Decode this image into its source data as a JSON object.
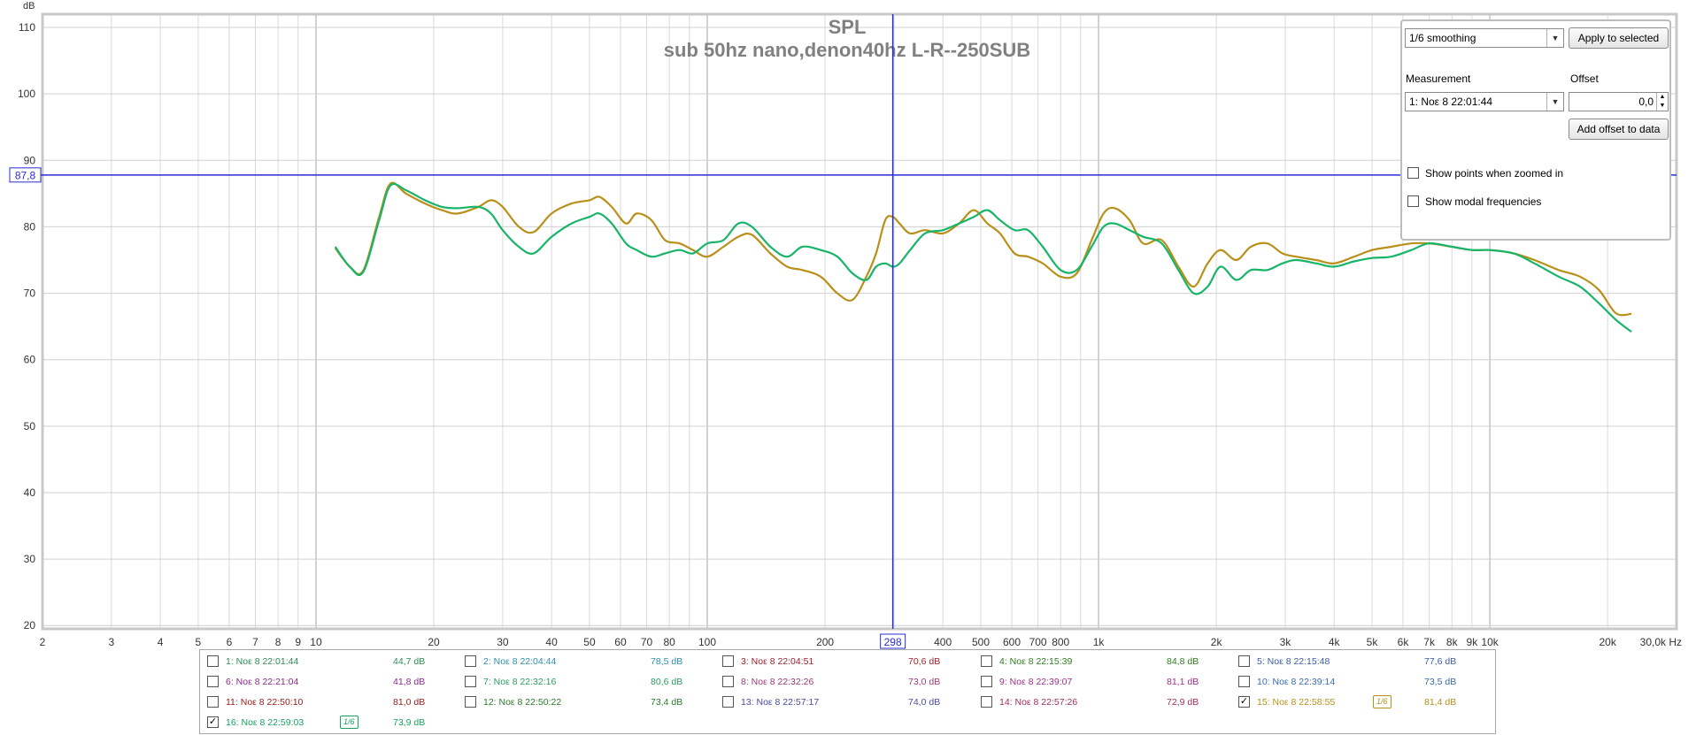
{
  "chart_data": {
    "type": "line",
    "title": "SPL",
    "subtitle": "sub 50hz nano,denon40hz L-R--250SUB",
    "ylabel": "dB",
    "xlabel": "Hz",
    "x_scale": "log",
    "xlim": [
      2,
      30000
    ],
    "ylim": [
      19.5,
      112
    ],
    "yticks": [
      110,
      100,
      90,
      80,
      70,
      60,
      50,
      40,
      30,
      20
    ],
    "xticks": [
      {
        "v": 2,
        "label": "2"
      },
      {
        "v": 3,
        "label": "3"
      },
      {
        "v": 4,
        "label": "4"
      },
      {
        "v": 5,
        "label": "5"
      },
      {
        "v": 6,
        "label": "6"
      },
      {
        "v": 7,
        "label": "7"
      },
      {
        "v": 8,
        "label": "8"
      },
      {
        "v": 9,
        "label": "9"
      },
      {
        "v": 10,
        "label": "10"
      },
      {
        "v": 20,
        "label": "20"
      },
      {
        "v": 30,
        "label": "30"
      },
      {
        "v": 40,
        "label": "40"
      },
      {
        "v": 50,
        "label": "50"
      },
      {
        "v": 60,
        "label": "60"
      },
      {
        "v": 70,
        "label": "70"
      },
      {
        "v": 80,
        "label": "80"
      },
      {
        "v": 100,
        "label": "100"
      },
      {
        "v": 200,
        "label": "200"
      },
      {
        "v": 400,
        "label": "400"
      },
      {
        "v": 500,
        "label": "500"
      },
      {
        "v": 600,
        "label": "600"
      },
      {
        "v": 700,
        "label": "700"
      },
      {
        "v": 800,
        "label": "800"
      },
      {
        "v": 1000,
        "label": "1k"
      },
      {
        "v": 2000,
        "label": "2k"
      },
      {
        "v": 3000,
        "label": "3k"
      },
      {
        "v": 4000,
        "label": "4k"
      },
      {
        "v": 5000,
        "label": "5k"
      },
      {
        "v": 6000,
        "label": "6k"
      },
      {
        "v": 7000,
        "label": "7k"
      },
      {
        "v": 8000,
        "label": "8k"
      },
      {
        "v": 9000,
        "label": "9k"
      },
      {
        "v": 10000,
        "label": "10k"
      },
      {
        "v": 20000,
        "label": "20k"
      },
      {
        "v": 30000,
        "label": "30,0k Hz"
      }
    ],
    "cursor": {
      "x": 298,
      "y": 87.8,
      "x_label": "298",
      "y_label": "87,8",
      "color": "#2b2bd6"
    },
    "grid": true,
    "series": [
      {
        "name": "15: Νοε 8 22:58:55",
        "color": "#b8901a",
        "x": [
          11.2,
          12.2,
          13.2,
          14.5,
          15.5,
          17,
          19,
          21,
          23,
          26,
          28,
          30,
          33,
          36,
          40,
          45,
          50,
          53,
          57,
          62,
          66,
          72,
          78,
          85,
          92,
          100,
          110,
          120,
          130,
          145,
          160,
          175,
          195,
          215,
          235,
          255,
          270,
          285,
          298,
          310,
          330,
          360,
          400,
          440,
          480,
          520,
          560,
          610,
          660,
          720,
          800,
          880,
          960,
          1030,
          1100,
          1200,
          1300,
          1450,
          1600,
          1750,
          1900,
          2050,
          2250,
          2450,
          2700,
          2950,
          3200,
          3600,
          4000,
          4500,
          5000,
          5600,
          6300,
          7000,
          8000,
          9000,
          10000,
          11500,
          13000,
          15000,
          17000,
          19000,
          21000,
          23000
        ],
        "y": [
          76.8,
          74.0,
          73.4,
          81.5,
          86.5,
          85.0,
          83.5,
          82.5,
          82.0,
          83.0,
          84.0,
          83.0,
          80.0,
          79.2,
          82.0,
          83.5,
          84.0,
          84.5,
          83.0,
          80.5,
          82.0,
          81.0,
          78.0,
          77.5,
          76.5,
          75.5,
          77.0,
          78.5,
          78.8,
          76.0,
          74.0,
          73.5,
          72.5,
          70.0,
          69.0,
          72.5,
          76.0,
          81.0,
          81.5,
          80.5,
          79.0,
          79.5,
          79.0,
          80.5,
          82.5,
          80.5,
          79.0,
          76.0,
          75.5,
          74.5,
          72.5,
          73.0,
          78.0,
          82.0,
          82.8,
          81.0,
          77.5,
          78.0,
          74.0,
          71.0,
          74.5,
          76.5,
          75.0,
          77.0,
          77.5,
          76.0,
          75.5,
          75.0,
          74.5,
          75.5,
          76.5,
          77.0,
          77.5,
          77.5,
          77.0,
          76.5,
          76.5,
          76.0,
          75.0,
          73.5,
          72.5,
          70.5,
          67.0,
          66.9
        ]
      },
      {
        "name": "16: Νοε 8 22:59:03",
        "color": "#18b46a",
        "x": [
          11.2,
          12.2,
          13.2,
          14.5,
          15.5,
          17,
          19,
          21,
          23,
          26,
          28,
          30,
          33,
          36,
          40,
          45,
          50,
          53,
          57,
          62,
          66,
          72,
          78,
          85,
          92,
          100,
          110,
          120,
          130,
          145,
          160,
          175,
          195,
          215,
          235,
          255,
          270,
          285,
          298,
          310,
          330,
          360,
          400,
          440,
          480,
          520,
          560,
          610,
          660,
          720,
          800,
          880,
          960,
          1030,
          1100,
          1200,
          1300,
          1450,
          1600,
          1750,
          1900,
          2050,
          2250,
          2450,
          2700,
          2950,
          3200,
          3600,
          4000,
          4500,
          5000,
          5600,
          6300,
          7000,
          8000,
          9000,
          10000,
          11500,
          13000,
          15000,
          17000,
          19000,
          21000,
          23000
        ],
        "y": [
          77.0,
          74.0,
          73.2,
          81.0,
          86.2,
          85.5,
          84.0,
          83.0,
          82.8,
          83.0,
          82.0,
          79.5,
          77.0,
          76.0,
          78.5,
          80.5,
          81.5,
          82.0,
          80.5,
          77.5,
          76.5,
          75.5,
          76.0,
          76.5,
          76.0,
          77.5,
          78.0,
          80.5,
          80.0,
          77.0,
          75.5,
          77.0,
          76.5,
          75.5,
          73.0,
          72.0,
          74.0,
          74.5,
          74.0,
          74.5,
          76.5,
          79.0,
          79.5,
          80.5,
          81.5,
          82.5,
          81.0,
          79.5,
          79.5,
          77.0,
          73.5,
          73.5,
          77.0,
          80.0,
          80.5,
          79.5,
          78.5,
          77.5,
          73.5,
          70.0,
          71.0,
          74.0,
          72.0,
          73.5,
          73.5,
          74.5,
          75.0,
          74.5,
          74.0,
          74.8,
          75.3,
          75.5,
          76.5,
          77.5,
          77.0,
          76.5,
          76.5,
          76.0,
          74.5,
          72.5,
          71.0,
          68.5,
          66.0,
          64.2
        ]
      }
    ]
  },
  "panel": {
    "smoothing_value": "1/6 smoothing",
    "apply_button": "Apply to selected",
    "measurement_label": "Measurement",
    "measurement_value": "1: Νοε 8 22:01:44",
    "offset_label": "Offset",
    "offset_value": "0,0",
    "add_offset_button": "Add offset to data",
    "show_points_label": "Show points when zoomed in",
    "show_modal_label": "Show modal frequencies"
  },
  "legend": [
    {
      "name": "1: Νοε 8 22:01:44",
      "value": "44,7 dB",
      "color": "#2e8b57",
      "checked": false,
      "smoothing": ""
    },
    {
      "name": "2: Νοε 8 22:04:44",
      "value": "78,5 dB",
      "color": "#2a8fb0",
      "checked": false,
      "smoothing": ""
    },
    {
      "name": "3: Νοε 8 22:04:51",
      "value": "70,6 dB",
      "color": "#a0202a",
      "checked": false,
      "smoothing": ""
    },
    {
      "name": "4: Νοε 8 22:15:39",
      "value": "84,8 dB",
      "color": "#2e7d1e",
      "checked": false,
      "smoothing": ""
    },
    {
      "name": "5: Νοε 8 22:15:48",
      "value": "77,6 dB",
      "color": "#3a5aa8",
      "checked": false,
      "smoothing": ""
    },
    {
      "name": "6: Νοε 8 22:21:04",
      "value": "41,8 dB",
      "color": "#8a2a8a",
      "checked": false,
      "smoothing": ""
    },
    {
      "name": "7: Νοε 8 22:32:16",
      "value": "80,6 dB",
      "color": "#2e9b5e",
      "checked": false,
      "smoothing": ""
    },
    {
      "name": "8: Νοε 8 22:32:26",
      "value": "73,0 dB",
      "color": "#9a3a7a",
      "checked": false,
      "smoothing": ""
    },
    {
      "name": "9: Νοε 8 22:39:07",
      "value": "81,1 dB",
      "color": "#a0308a",
      "checked": false,
      "smoothing": ""
    },
    {
      "name": "10: Νοε 8 22:39:14",
      "value": "73,5 dB",
      "color": "#3a6ab0",
      "checked": false,
      "smoothing": ""
    },
    {
      "name": "11: Νοε 8 22:50:10",
      "value": "81,0 dB",
      "color": "#9a1a1a",
      "checked": false,
      "smoothing": ""
    },
    {
      "name": "12: Νοε 8 22:50:22",
      "value": "73,4 dB",
      "color": "#2a7a2a",
      "checked": false,
      "smoothing": ""
    },
    {
      "name": "13: Νοε 8 22:57:17",
      "value": "74,0 dB",
      "color": "#4a4aa0",
      "checked": false,
      "smoothing": ""
    },
    {
      "name": "14: Νοε 8 22:57:26",
      "value": "72,9 dB",
      "color": "#a0305a",
      "checked": false,
      "smoothing": ""
    },
    {
      "name": "15: Νοε 8 22:58:55",
      "value": "81,4 dB",
      "color": "#b8901a",
      "checked": true,
      "smoothing": "1/6"
    },
    {
      "name": "16: Νοε 8 22:59:03",
      "value": "73,9 dB",
      "color": "#18a060",
      "checked": true,
      "smoothing": "1/6"
    }
  ]
}
